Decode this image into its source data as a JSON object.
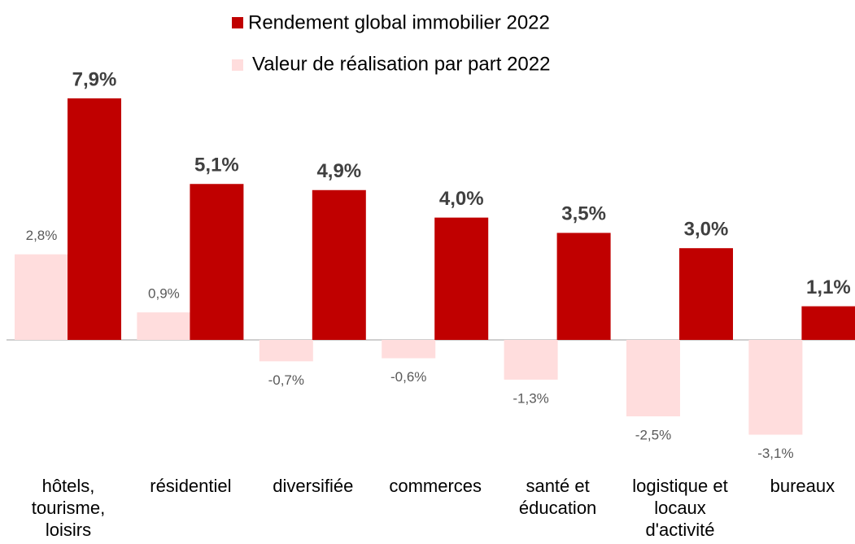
{
  "chart_data": {
    "type": "bar",
    "categories": [
      "hôtels, tourisme, loisirs",
      "résidentiel",
      "diversifiée",
      "commerces",
      "santé et éducation",
      "logistique et locaux d'activité",
      "bureaux"
    ],
    "series": [
      {
        "name": "Valeur de réalisation par part 2022",
        "color": "#ffdddd",
        "values": [
          2.8,
          0.9,
          -0.7,
          -0.6,
          -1.3,
          -2.5,
          -3.1
        ],
        "value_labels": [
          "2,8%",
          "0,9%",
          "-0,7%",
          "-0,6%",
          "-1,3%",
          "-2,5%",
          "-3,1%"
        ]
      },
      {
        "name": "Rendement global immobilier 2022",
        "color": "#c00000",
        "values": [
          7.9,
          5.1,
          4.9,
          4.0,
          3.5,
          3.0,
          1.1
        ],
        "value_labels": [
          "7,9%",
          "5,1%",
          "4,9%",
          "4,0%",
          "3,5%",
          "3,0%",
          "1,1%"
        ]
      }
    ],
    "ylim": [
      -4,
      8.5
    ]
  }
}
